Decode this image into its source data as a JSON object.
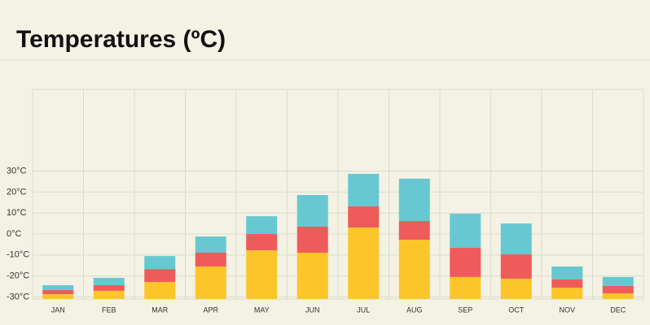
{
  "chart_data": {
    "type": "stacked_bar",
    "title": "Temperatures (ºC)",
    "categories": [
      "JAN",
      "FEB",
      "MAR",
      "APR",
      "MAY",
      "JUN",
      "JUL",
      "AUG",
      "SEP",
      "OCT",
      "NOV",
      "DEC"
    ],
    "series": [
      {
        "color": "#fcc62a",
        "values": [
          2.3,
          3.9,
          8.1,
          15.5,
          23.2,
          22.1,
          34.1,
          28.3,
          10.5,
          9.7,
          5.4,
          2.7
        ]
      },
      {
        "color": "#ef5b5b",
        "values": [
          2,
          2.7,
          6.2,
          6.6,
          7.8,
          12.4,
          10.1,
          8.9,
          13.9,
          11.6,
          3.9,
          3.5
        ]
      },
      {
        "color": "#68c8d1",
        "values": [
          2.3,
          3.5,
          6.2,
          7.7,
          8.5,
          15.1,
          15.5,
          20.2,
          16.3,
          14.7,
          6.2,
          4.3
        ]
      }
    ],
    "ylim": [
      -31,
      69
    ],
    "yticks": [
      {
        "value": -30,
        "label": "-30°C"
      },
      {
        "value": -20,
        "label": "-20°C"
      },
      {
        "value": -10,
        "label": "-10°C"
      },
      {
        "value": 0,
        "label": "0°C"
      },
      {
        "value": 10,
        "label": "10°C"
      },
      {
        "value": 20,
        "label": "20°C"
      },
      {
        "value": 30,
        "label": "30°C"
      }
    ],
    "grid": true
  }
}
